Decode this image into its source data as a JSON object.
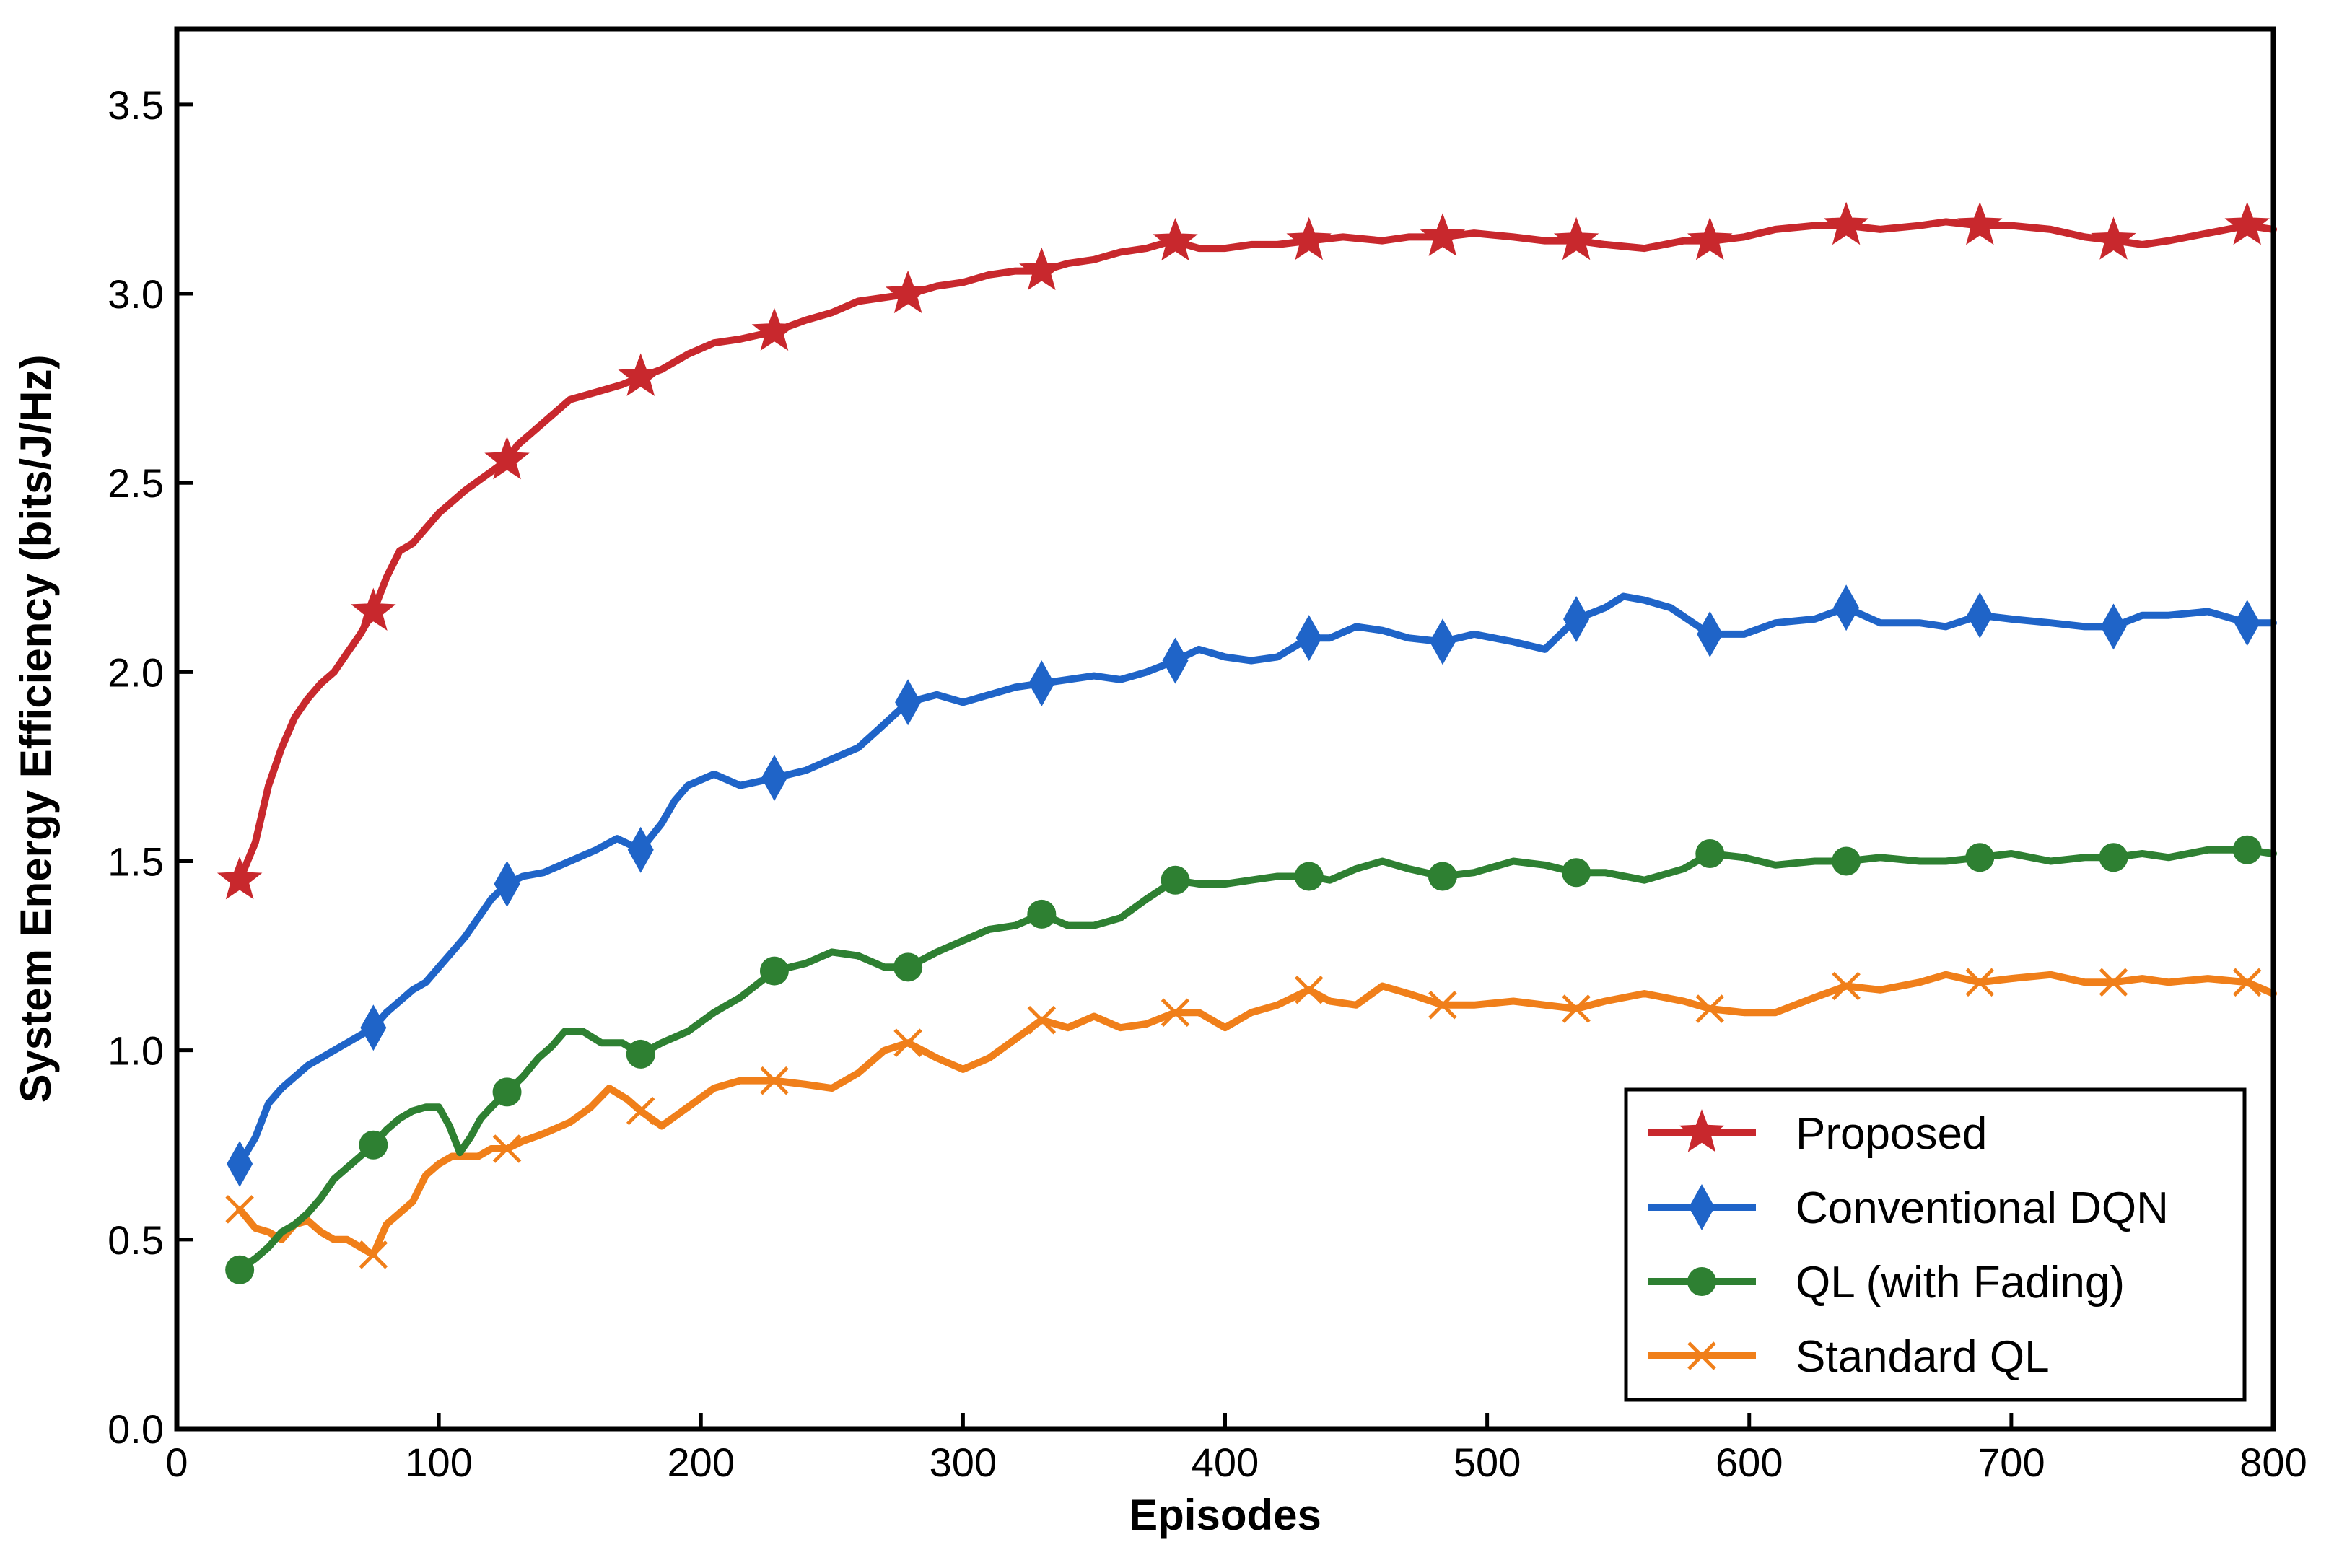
{
  "chart_data": {
    "type": "line",
    "title": "",
    "xlabel": "Episodes",
    "ylabel": "System Energy Efficiency (bits/J/Hz)",
    "xlim": [
      0,
      800
    ],
    "ylim": [
      0,
      3.7
    ],
    "xticks": [
      0,
      100,
      200,
      300,
      400,
      500,
      600,
      700,
      800
    ],
    "xtick_labels": [
      "0",
      "100",
      "200",
      "300",
      "400",
      "500",
      "600",
      "700",
      "800"
    ],
    "yticks": [
      0.0,
      0.5,
      1.0,
      1.5,
      2.0,
      2.5,
      3.0,
      3.5
    ],
    "ytick_labels": [
      "0.0",
      "0.5",
      "1.0",
      "1.5",
      "2.0",
      "2.5",
      "3.0",
      "3.5"
    ],
    "grid": false,
    "legend_position": "lower-right",
    "series": [
      {
        "name": "Proposed",
        "color": "#c8282d",
        "marker": "star",
        "x": [
          24,
          30,
          35,
          40,
          45,
          50,
          55,
          60,
          65,
          70,
          75,
          80,
          85,
          90,
          95,
          100,
          110,
          120,
          126,
          130,
          140,
          150,
          160,
          170,
          177,
          185,
          195,
          205,
          215,
          228,
          240,
          250,
          260,
          270,
          280,
          290,
          300,
          310,
          320,
          330,
          340,
          350,
          360,
          370,
          380,
          390,
          400,
          410,
          420,
          432,
          445,
          460,
          470,
          483,
          495,
          510,
          522,
          534,
          545,
          560,
          575,
          586,
          598,
          610,
          625,
          637,
          650,
          665,
          675,
          688,
          700,
          715,
          728,
          740,
          750,
          760,
          775,
          790,
          800
        ],
        "y": [
          1.45,
          1.55,
          1.7,
          1.8,
          1.88,
          1.93,
          1.97,
          2.0,
          2.05,
          2.1,
          2.16,
          2.25,
          2.32,
          2.34,
          2.38,
          2.42,
          2.48,
          2.53,
          2.56,
          2.6,
          2.66,
          2.72,
          2.74,
          2.76,
          2.78,
          2.8,
          2.84,
          2.87,
          2.88,
          2.9,
          2.93,
          2.95,
          2.98,
          2.99,
          3.0,
          3.02,
          3.03,
          3.05,
          3.06,
          3.06,
          3.08,
          3.09,
          3.11,
          3.12,
          3.14,
          3.12,
          3.12,
          3.13,
          3.13,
          3.14,
          3.15,
          3.14,
          3.15,
          3.15,
          3.16,
          3.15,
          3.14,
          3.14,
          3.13,
          3.12,
          3.14,
          3.14,
          3.15,
          3.17,
          3.18,
          3.18,
          3.17,
          3.18,
          3.19,
          3.18,
          3.18,
          3.17,
          3.15,
          3.14,
          3.13,
          3.14,
          3.16,
          3.18,
          3.17
        ],
        "marker_x": [
          24,
          75,
          126,
          177,
          228,
          279,
          330,
          381,
          432,
          483,
          534,
          585,
          637,
          688,
          739,
          790
        ]
      },
      {
        "name": "Conventional DQN",
        "color": "#1f64c8",
        "marker": "diamond",
        "x": [
          24,
          30,
          35,
          40,
          45,
          50,
          55,
          60,
          65,
          70,
          75,
          80,
          85,
          90,
          95,
          100,
          105,
          110,
          115,
          120,
          126,
          132,
          140,
          150,
          160,
          168,
          177,
          185,
          190,
          195,
          205,
          215,
          228,
          240,
          250,
          260,
          268,
          279,
          290,
          300,
          310,
          320,
          330,
          340,
          350,
          360,
          370,
          381,
          390,
          400,
          410,
          420,
          432,
          440,
          450,
          460,
          470,
          483,
          495,
          510,
          522,
          534,
          545,
          552,
          560,
          570,
          585,
          598,
          610,
          625,
          637,
          650,
          665,
          675,
          688,
          700,
          715,
          728,
          739,
          750,
          760,
          775,
          790,
          800
        ],
        "y": [
          0.7,
          0.77,
          0.86,
          0.9,
          0.93,
          0.96,
          0.98,
          1.0,
          1.02,
          1.04,
          1.06,
          1.1,
          1.13,
          1.16,
          1.18,
          1.22,
          1.26,
          1.3,
          1.35,
          1.4,
          1.44,
          1.46,
          1.47,
          1.5,
          1.53,
          1.56,
          1.53,
          1.6,
          1.66,
          1.7,
          1.73,
          1.7,
          1.72,
          1.74,
          1.77,
          1.8,
          1.85,
          1.92,
          1.94,
          1.92,
          1.94,
          1.96,
          1.97,
          1.98,
          1.99,
          1.98,
          2.0,
          2.03,
          2.06,
          2.04,
          2.03,
          2.04,
          2.09,
          2.09,
          2.12,
          2.11,
          2.09,
          2.08,
          2.1,
          2.08,
          2.06,
          2.14,
          2.17,
          2.2,
          2.19,
          2.17,
          2.1,
          2.1,
          2.13,
          2.14,
          2.17,
          2.13,
          2.13,
          2.12,
          2.15,
          2.14,
          2.13,
          2.12,
          2.12,
          2.15,
          2.15,
          2.16,
          2.13,
          2.13
        ],
        "marker_x": [
          24,
          75,
          126,
          177,
          228,
          279,
          330,
          381,
          432,
          483,
          534,
          585,
          637,
          688,
          739,
          790
        ]
      },
      {
        "name": "QL (with Fading)",
        "color": "#2e8032",
        "marker": "circle",
        "x": [
          24,
          30,
          35,
          40,
          45,
          50,
          55,
          60,
          65,
          70,
          75,
          80,
          85,
          90,
          95,
          100,
          104,
          108,
          112,
          116,
          120,
          126,
          132,
          138,
          143,
          148,
          155,
          162,
          170,
          177,
          185,
          195,
          205,
          215,
          228,
          240,
          250,
          260,
          270,
          279,
          290,
          300,
          310,
          320,
          330,
          340,
          350,
          360,
          370,
          381,
          390,
          400,
          410,
          420,
          432,
          440,
          450,
          460,
          470,
          483,
          495,
          510,
          522,
          534,
          545,
          560,
          575,
          585,
          598,
          610,
          625,
          637,
          650,
          665,
          675,
          688,
          700,
          715,
          728,
          739,
          750,
          760,
          775,
          790,
          800
        ],
        "y": [
          0.42,
          0.45,
          0.48,
          0.52,
          0.54,
          0.57,
          0.61,
          0.66,
          0.69,
          0.72,
          0.75,
          0.79,
          0.82,
          0.84,
          0.85,
          0.85,
          0.8,
          0.73,
          0.77,
          0.82,
          0.85,
          0.89,
          0.93,
          0.98,
          1.01,
          1.05,
          1.05,
          1.02,
          1.02,
          0.99,
          1.02,
          1.05,
          1.1,
          1.14,
          1.21,
          1.23,
          1.26,
          1.25,
          1.22,
          1.22,
          1.26,
          1.29,
          1.32,
          1.33,
          1.36,
          1.33,
          1.33,
          1.35,
          1.4,
          1.45,
          1.44,
          1.44,
          1.45,
          1.46,
          1.46,
          1.45,
          1.48,
          1.5,
          1.48,
          1.46,
          1.47,
          1.5,
          1.49,
          1.47,
          1.47,
          1.45,
          1.48,
          1.52,
          1.51,
          1.49,
          1.5,
          1.5,
          1.51,
          1.5,
          1.5,
          1.51,
          1.52,
          1.5,
          1.51,
          1.51,
          1.52,
          1.51,
          1.53,
          1.53,
          1.52
        ],
        "marker_x": [
          24,
          75,
          126,
          177,
          228,
          279,
          330,
          381,
          432,
          483,
          534,
          585,
          637,
          688,
          739,
          790
        ]
      },
      {
        "name": "Standard QL",
        "color": "#f07f1a",
        "marker": "x",
        "x": [
          24,
          30,
          35,
          40,
          45,
          50,
          55,
          60,
          65,
          70,
          75,
          80,
          85,
          90,
          95,
          100,
          105,
          110,
          115,
          120,
          126,
          132,
          140,
          150,
          158,
          165,
          172,
          177,
          185,
          195,
          205,
          215,
          228,
          240,
          250,
          260,
          270,
          279,
          290,
          300,
          310,
          320,
          330,
          340,
          350,
          360,
          370,
          381,
          390,
          400,
          410,
          420,
          432,
          440,
          450,
          460,
          470,
          483,
          495,
          510,
          522,
          534,
          545,
          560,
          575,
          585,
          598,
          610,
          625,
          637,
          650,
          665,
          675,
          688,
          700,
          715,
          728,
          739,
          750,
          760,
          775,
          790,
          800
        ],
        "y": [
          0.58,
          0.53,
          0.52,
          0.5,
          0.54,
          0.55,
          0.52,
          0.5,
          0.5,
          0.48,
          0.46,
          0.54,
          0.57,
          0.6,
          0.67,
          0.7,
          0.72,
          0.72,
          0.72,
          0.74,
          0.74,
          0.76,
          0.78,
          0.81,
          0.85,
          0.9,
          0.87,
          0.84,
          0.8,
          0.85,
          0.9,
          0.92,
          0.92,
          0.91,
          0.9,
          0.94,
          1.0,
          1.02,
          0.98,
          0.95,
          0.98,
          1.03,
          1.08,
          1.06,
          1.09,
          1.06,
          1.07,
          1.1,
          1.1,
          1.06,
          1.1,
          1.12,
          1.16,
          1.13,
          1.12,
          1.17,
          1.15,
          1.12,
          1.12,
          1.13,
          1.12,
          1.11,
          1.13,
          1.15,
          1.13,
          1.11,
          1.1,
          1.1,
          1.14,
          1.17,
          1.16,
          1.18,
          1.2,
          1.18,
          1.19,
          1.2,
          1.18,
          1.18,
          1.19,
          1.18,
          1.19,
          1.18,
          1.15
        ],
        "marker_x": [
          24,
          75,
          126,
          177,
          228,
          279,
          330,
          381,
          432,
          483,
          534,
          585,
          637,
          688,
          739,
          790
        ]
      }
    ]
  }
}
